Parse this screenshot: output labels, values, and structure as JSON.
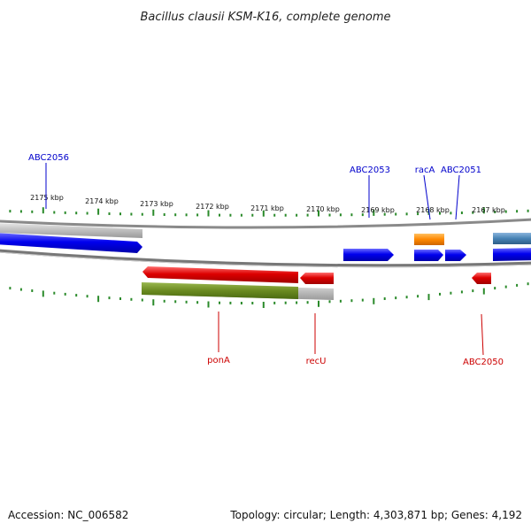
{
  "title": "Bacillus clausii KSM-K16, complete genome",
  "footer": {
    "accession": "Accession: NC_006582",
    "summary": "Topology: circular; Length: 4,303,871 bp; Genes: 4,192"
  },
  "colors": {
    "backbone": "#888888",
    "tick": "#2a8a2a",
    "label_top": "#0000cc",
    "label_bottom": "#cc0000",
    "forward_gene": "#0000ee",
    "reverse_gene": "#dd0000",
    "gray_feature": "#b8b8b8",
    "olive_feature": "#6a8a20",
    "orange_feature": "#ff8800",
    "steel_feature": "#4682b4"
  },
  "scale": {
    "unit": "kbp",
    "labels": [
      "2175 kbp",
      "2174 kbp",
      "2173 kbp",
      "2172 kbp",
      "2171 kbp",
      "2170 kbp",
      "2169 kbp",
      "2168 kbp",
      "2167 kbp"
    ]
  },
  "genes_top": [
    "ABC2056",
    "ABC2053",
    "racA",
    "ABC2051"
  ],
  "genes_bottom": [
    "ponA",
    "recU",
    "ABC2050"
  ]
}
